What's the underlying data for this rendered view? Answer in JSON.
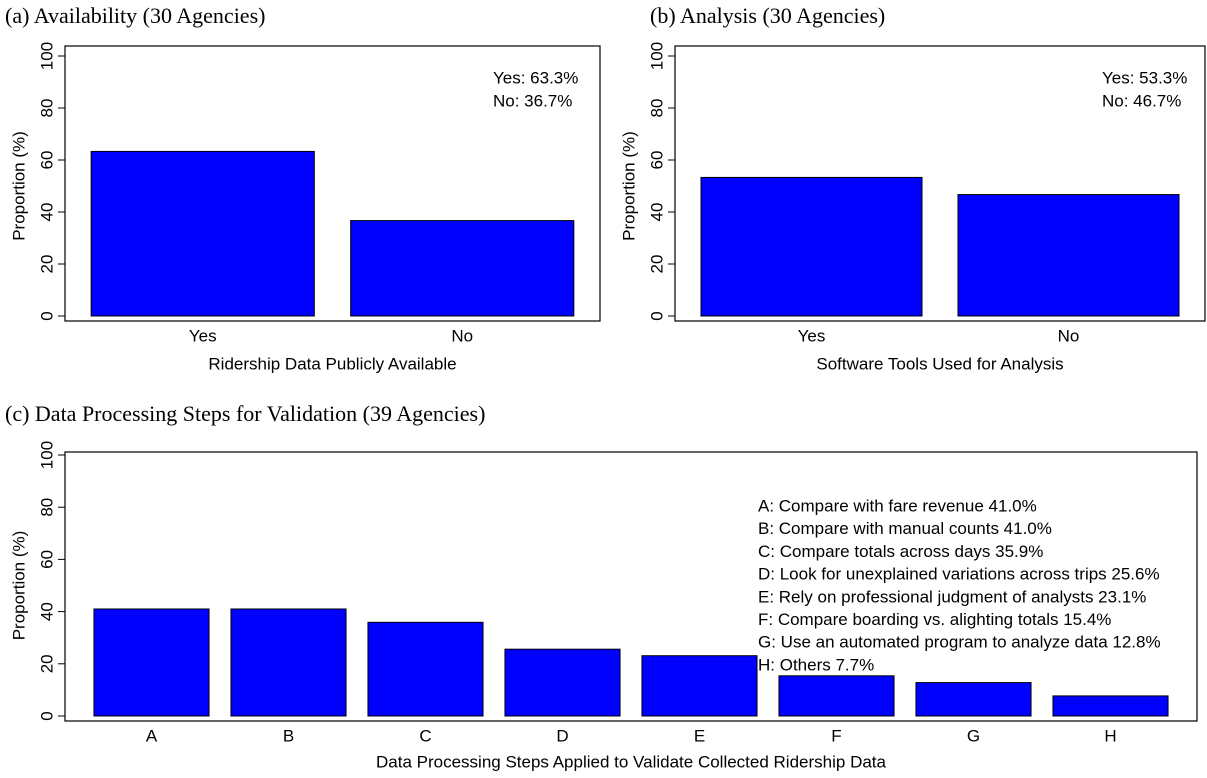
{
  "chart_data": [
    {
      "type": "bar",
      "title": "(a) Availability  (30 Agencies)",
      "xlabel": "Ridership Data Publicly Available",
      "ylabel": "Proportion (%)",
      "categories": [
        "Yes",
        "No"
      ],
      "values": [
        63.3,
        36.7
      ],
      "color": "#0000ff",
      "ylim": [
        0,
        100
      ],
      "yticks": [
        0,
        20,
        40,
        60,
        80,
        100
      ],
      "annotations": [
        "Yes: 63.3%",
        "No: 36.7%"
      ]
    },
    {
      "type": "bar",
      "title": "(b) Analysis  (30 Agencies)",
      "xlabel": "Software Tools Used for Analysis",
      "ylabel": "Proportion (%)",
      "categories": [
        "Yes",
        "No"
      ],
      "values": [
        53.3,
        46.7
      ],
      "color": "#0000ff",
      "ylim": [
        0,
        100
      ],
      "yticks": [
        0,
        20,
        40,
        60,
        80,
        100
      ],
      "annotations": [
        "Yes: 53.3%",
        "No: 46.7%"
      ]
    },
    {
      "type": "bar",
      "title": "(c) Data Processing Steps for Validation (39 Agencies)",
      "xlabel": "Data Processing Steps Applied to Validate Collected Ridership Data",
      "ylabel": "Proportion (%)",
      "categories": [
        "A",
        "B",
        "C",
        "D",
        "E",
        "F",
        "G",
        "H"
      ],
      "values": [
        41.0,
        41.0,
        35.9,
        25.6,
        23.1,
        15.4,
        12.8,
        7.7
      ],
      "color": "#0000ff",
      "ylim": [
        0,
        100
      ],
      "yticks": [
        0,
        20,
        40,
        60,
        80,
        100
      ],
      "annotations": [
        "A: Compare with fare revenue 41.0%",
        "B: Compare with manual counts 41.0%",
        "C: Compare totals across days 35.9%",
        "D: Look for unexplained variations across trips 25.6%",
        "E: Rely on professional judgment of analysts 23.1%",
        "F: Compare boarding vs. alighting totals 15.4%",
        "G: Use an automated program to analyze data 12.8%",
        "H: Others 7.7%"
      ]
    }
  ]
}
